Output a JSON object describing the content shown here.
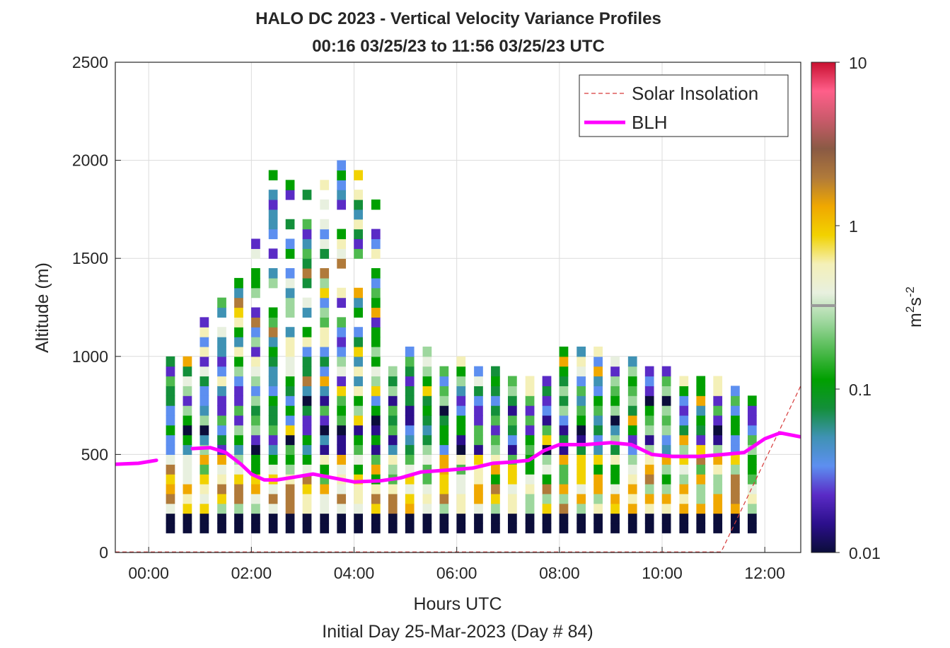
{
  "chart_data": {
    "type": "heatmap",
    "title": "HALO DC 2023 - Vertical Velocity Variance Profiles",
    "subtitle": "00:16 03/25/23 to 11:56 03/25/23  UTC",
    "xlabel": "Hours UTC",
    "xlabel2": "Initial Day 25-Mar-2023 (Day # 84)",
    "ylabel": "Altitude (m)",
    "colorbar_label_base": "m",
    "colorbar_label_sup1": "2",
    "colorbar_label_mid": "s",
    "colorbar_label_sup2": "-2",
    "x_ticks": [
      "00:00",
      "02:00",
      "04:00",
      "06:00",
      "08:00",
      "10:00",
      "12:00"
    ],
    "x_tick_hours": [
      0,
      2,
      4,
      6,
      8,
      10,
      12
    ],
    "xlim_hours": [
      -0.65,
      12.7
    ],
    "y_ticks": [
      "0",
      "500",
      "1000",
      "1500",
      "2000",
      "2500"
    ],
    "y_tick_values": [
      0,
      500,
      1000,
      1500,
      2000,
      2500
    ],
    "ylim": [
      0,
      2500
    ],
    "colorbar_ticks": [
      "0.01",
      "0.1",
      "1",
      "10"
    ],
    "colorbar_tick_values": [
      0.01,
      0.1,
      1,
      10
    ],
    "colorbar_scale": "log",
    "color_range": [
      0.01,
      10
    ],
    "colormap": [
      "#0b0d3a",
      "#2c0f8c",
      "#5a2bc6",
      "#5d8ff0",
      "#3f92b4",
      "#138f3a",
      "#00a000",
      "#4fba4f",
      "#9ed79e",
      "#e8f0df",
      "#f4f0b8",
      "#f2d200",
      "#f0a800",
      "#b07a3a",
      "#8a5a44",
      "#c95a6a",
      "#ff5f8a",
      "#c81030"
    ],
    "grid": true,
    "legend_position": "top-right",
    "legend": [
      {
        "label": "Solar Insolation",
        "style": "dashed",
        "color": "#d63a3a"
      },
      {
        "label": "BLH",
        "style": "solid",
        "color": "#ff00ff"
      }
    ],
    "bin_width_hours": 0.167,
    "bin_height_m": 50,
    "columns": [
      {
        "t": 0.42,
        "top": 1000
      },
      {
        "t": 0.75,
        "top": 1000
      },
      {
        "t": 1.08,
        "top": 1200
      },
      {
        "t": 1.42,
        "top": 1300
      },
      {
        "t": 1.75,
        "top": 1400
      },
      {
        "t": 2.08,
        "top": 1600
      },
      {
        "t": 2.42,
        "top": 1950
      },
      {
        "t": 2.75,
        "top": 1970
      },
      {
        "t": 3.08,
        "top": 1850
      },
      {
        "t": 3.42,
        "top": 1900
      },
      {
        "t": 3.75,
        "top": 2050
      },
      {
        "t": 4.08,
        "top": 1950
      },
      {
        "t": 4.42,
        "top": 1800
      },
      {
        "t": 4.75,
        "top": 950
      },
      {
        "t": 5.08,
        "top": 1050
      },
      {
        "t": 5.42,
        "top": 1050
      },
      {
        "t": 5.75,
        "top": 950
      },
      {
        "t": 6.08,
        "top": 1000
      },
      {
        "t": 6.42,
        "top": 950
      },
      {
        "t": 6.75,
        "top": 950
      },
      {
        "t": 7.08,
        "top": 900
      },
      {
        "t": 7.42,
        "top": 900
      },
      {
        "t": 7.75,
        "top": 900
      },
      {
        "t": 8.08,
        "top": 1050
      },
      {
        "t": 8.42,
        "top": 1050
      },
      {
        "t": 8.75,
        "top": 1050
      },
      {
        "t": 9.08,
        "top": 1000
      },
      {
        "t": 9.42,
        "top": 1000
      },
      {
        "t": 9.75,
        "top": 950
      },
      {
        "t": 10.08,
        "top": 950
      },
      {
        "t": 10.42,
        "top": 900
      },
      {
        "t": 10.75,
        "top": 900
      },
      {
        "t": 11.08,
        "top": 900
      },
      {
        "t": 11.42,
        "top": 850
      },
      {
        "t": 11.75,
        "top": 800
      }
    ],
    "blh": {
      "x": [
        -0.65,
        -0.2,
        0.15,
        0.55,
        0.85,
        1.2,
        1.5,
        1.8,
        2.0,
        2.25,
        2.5,
        2.85,
        3.2,
        3.6,
        4.0,
        4.5,
        4.9,
        5.3,
        5.8,
        6.3,
        6.7,
        7.0,
        7.4,
        7.7,
        8.0,
        8.5,
        9.0,
        9.4,
        9.8,
        10.2,
        10.7,
        11.2,
        11.6,
        12.0,
        12.3,
        12.7
      ],
      "y": [
        450,
        455,
        470,
        null,
        530,
        535,
        510,
        450,
        400,
        370,
        370,
        385,
        400,
        380,
        360,
        365,
        380,
        410,
        420,
        430,
        455,
        460,
        470,
        520,
        550,
        550,
        560,
        550,
        500,
        490,
        490,
        500,
        510,
        580,
        610,
        590
      ]
    },
    "solar_insolation": {
      "x": [
        -0.65,
        11.15,
        12.7
      ],
      "y": [
        3,
        3,
        850
      ]
    }
  }
}
